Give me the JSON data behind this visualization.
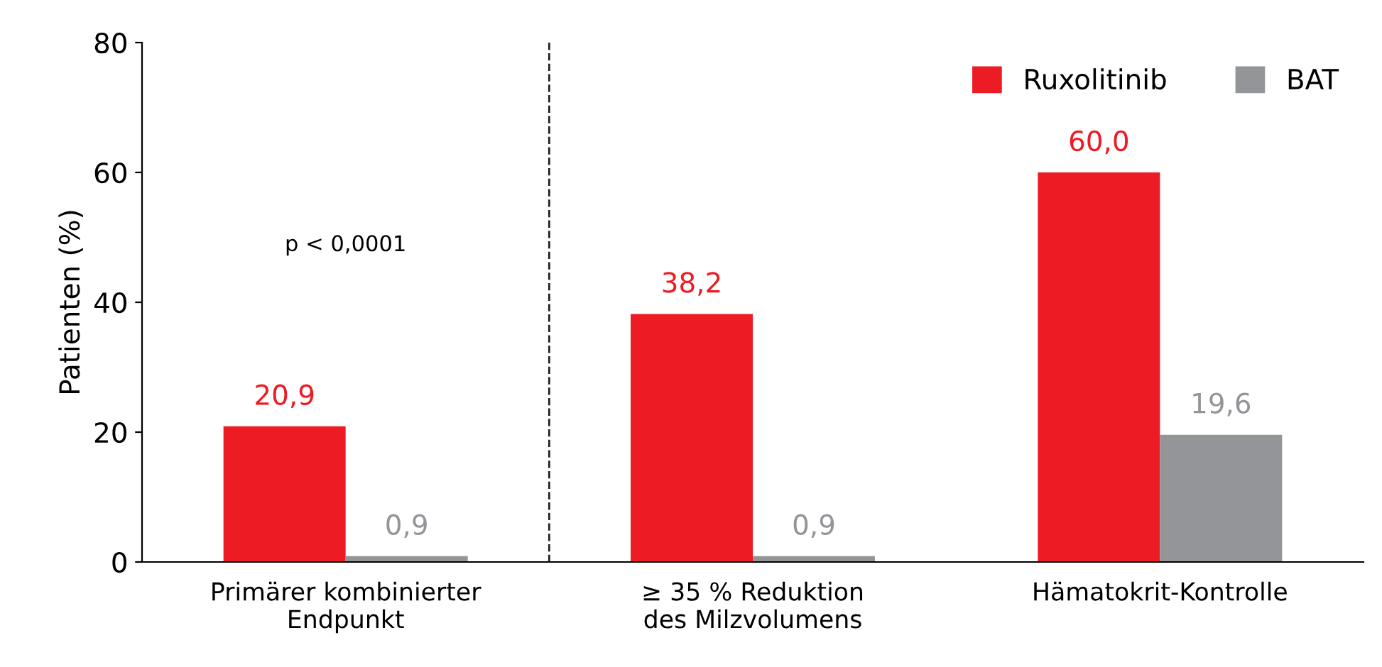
{
  "chart_data": {
    "type": "bar",
    "ylabel": "Patienten (%)",
    "categories": [
      "Primärer kombinierter\nEndpunkt",
      "≥ 35 % Reduktion\ndes Milzvolumens",
      "Hämatokrit-Kontrolle"
    ],
    "series": [
      {
        "name": "Ruxolitinib",
        "color": "#ed1c24",
        "values": [
          20.9,
          38.2,
          60.0
        ],
        "value_labels": [
          "20,9",
          "38,2",
          "60,0"
        ]
      },
      {
        "name": "BAT",
        "color": "#939598",
        "values": [
          0.9,
          0.9,
          19.6
        ],
        "value_labels": [
          "0,9",
          "0,9",
          "19,6"
        ]
      }
    ],
    "ylim": [
      0,
      80
    ],
    "yticks": [
      0,
      20,
      40,
      60,
      80
    ],
    "grid": false,
    "legend": "top right",
    "annotations": [
      "p < 0,0001"
    ]
  }
}
